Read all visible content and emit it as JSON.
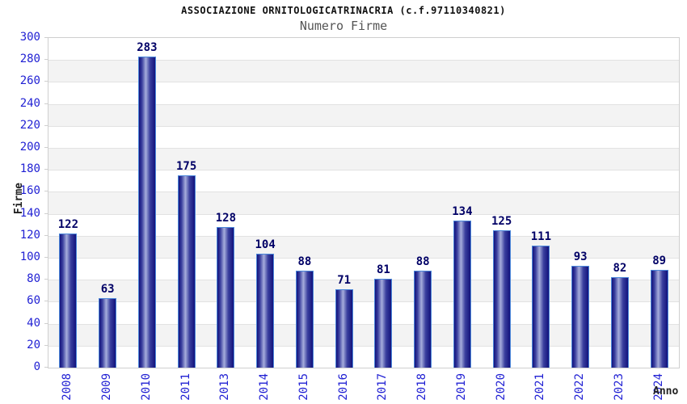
{
  "header": {
    "title": "ASSOCIAZIONE ORNITOLOGICATRINACRIA (c.f.97110340821)",
    "subtitle": "Numero Firme"
  },
  "chart_data": {
    "type": "bar",
    "title": "ASSOCIAZIONE ORNITOLOGICATRINACRIA (c.f.97110340821)",
    "subtitle": "Numero Firme",
    "xlabel": "Anno",
    "ylabel": "Firme",
    "categories": [
      "2008",
      "2009",
      "2010",
      "2011",
      "2013",
      "2014",
      "2015",
      "2016",
      "2017",
      "2018",
      "2019",
      "2020",
      "2021",
      "2022",
      "2023",
      "2024"
    ],
    "values": [
      122,
      63,
      283,
      175,
      128,
      104,
      88,
      71,
      81,
      88,
      134,
      125,
      111,
      93,
      82,
      89
    ],
    "ylim": [
      0,
      300
    ],
    "ytick_step": 20,
    "grid": true,
    "legend": "none",
    "band_colors": [
      "#ffffff",
      "#f3f3f3"
    ],
    "colors": {
      "title": "#111111",
      "subtitle": "#555555",
      "tick_label": "#1f1fd3",
      "value_label": "#000066",
      "axis_label": "#222222",
      "gridline": "#e2e2e2",
      "plot_border": "#cfcfcf",
      "bar_border": "#4b87da",
      "bar_dark": "#12127c",
      "bar_mid": "#3a3f9e",
      "bar_light": "#a6addc"
    }
  }
}
